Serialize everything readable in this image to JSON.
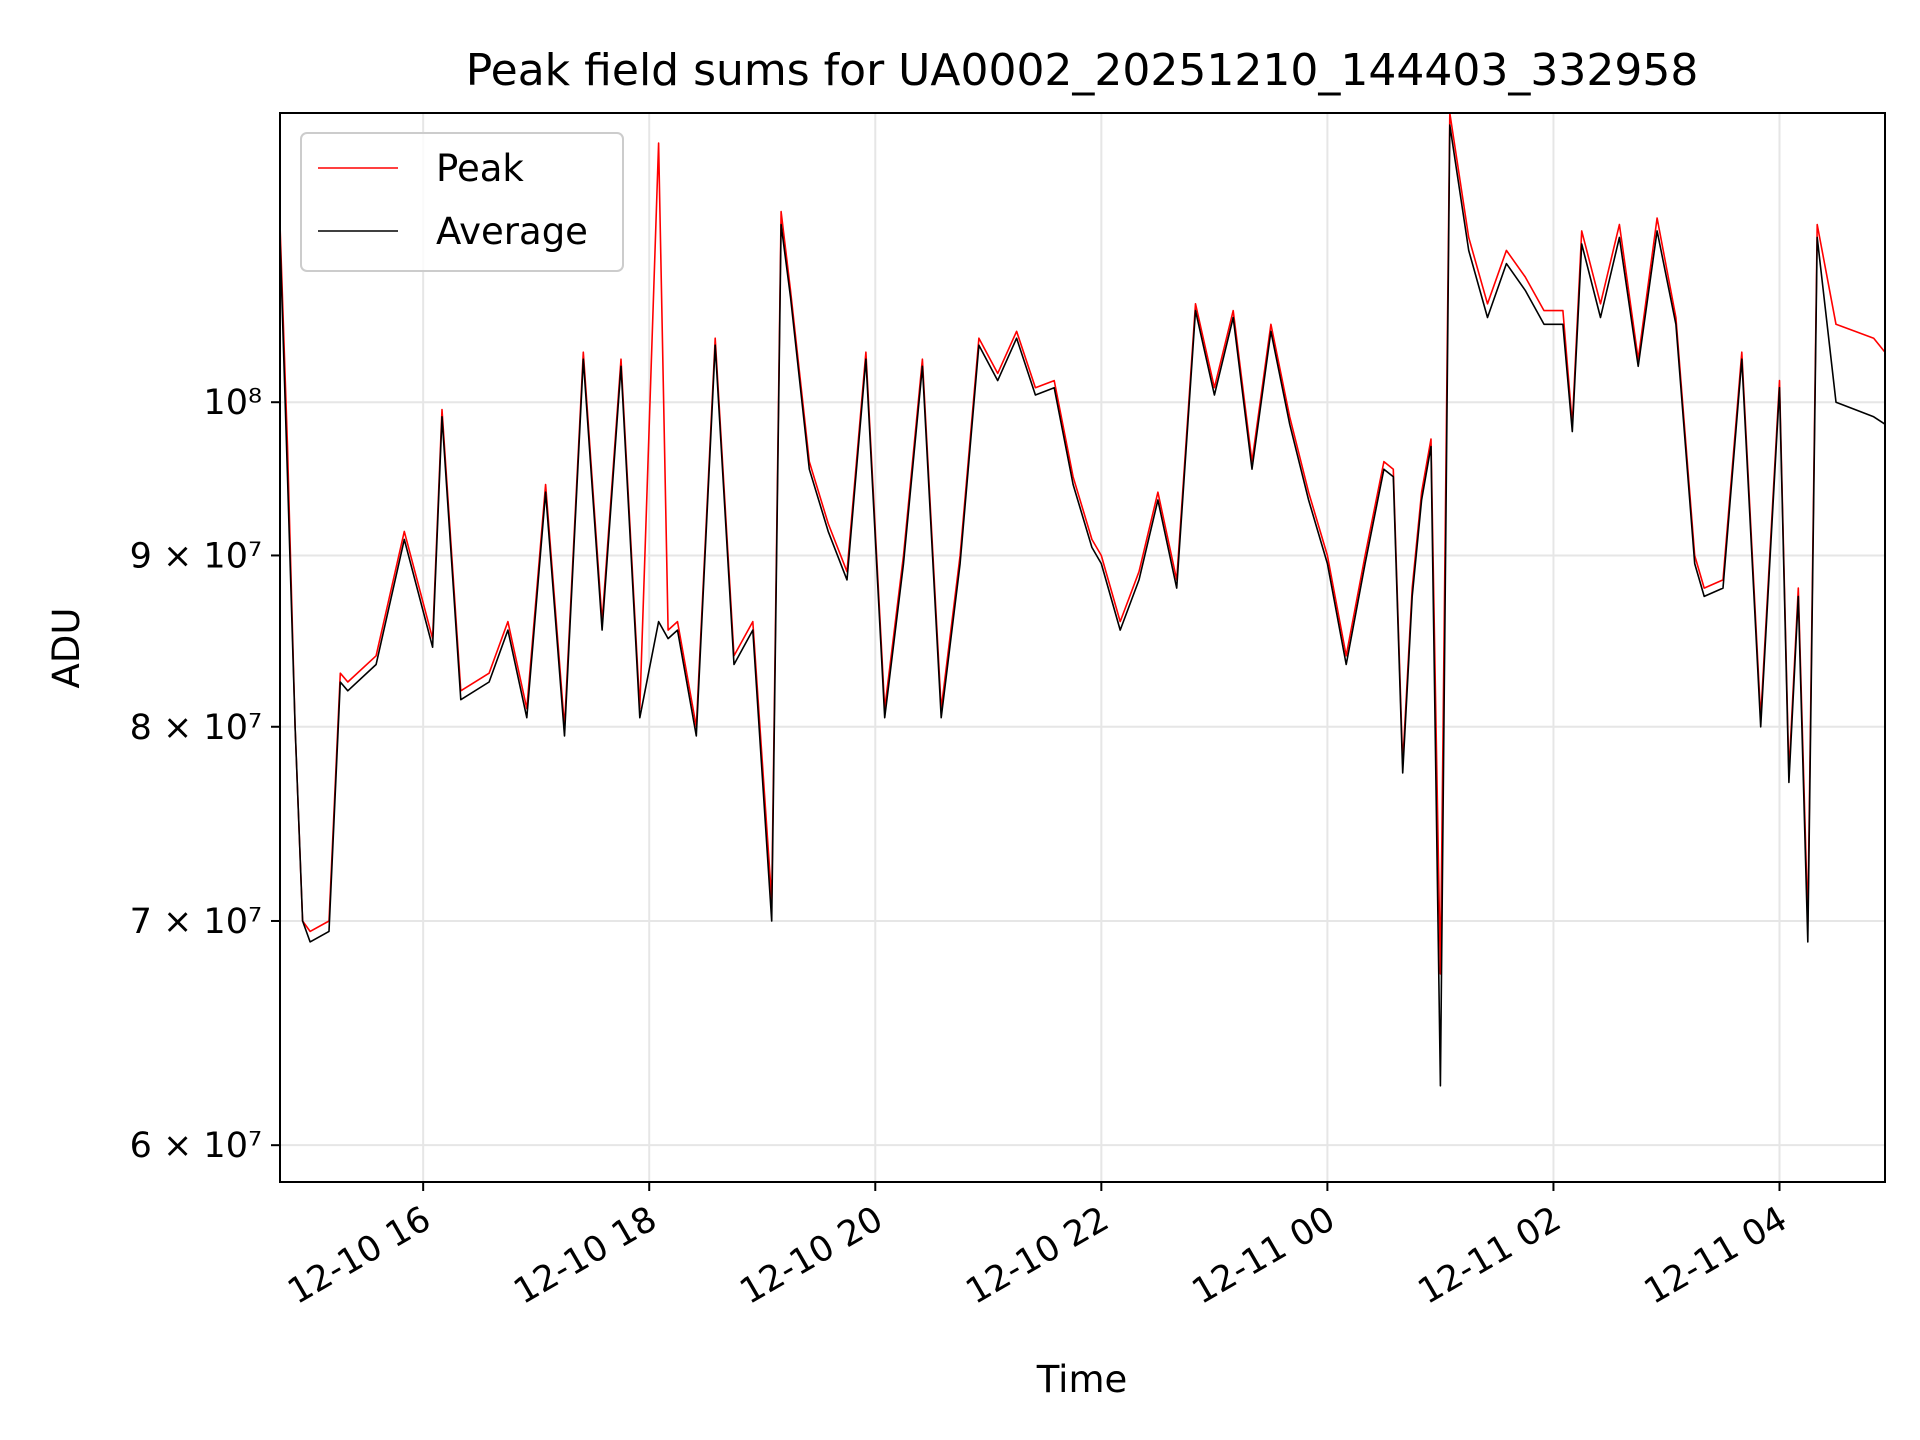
{
  "chart_data": {
    "type": "line",
    "title": "Peak field sums for UA0002_20251210_144403_332958",
    "xlabel": "Time",
    "ylabel": "ADU",
    "y_scale": "log",
    "grid": true,
    "legend_position": "top-left",
    "xlim": [
      "2025-12-10 14:44",
      "2025-12-11 04:56"
    ],
    "ylim": [
      58500000,
      122000000
    ],
    "x_ticks": [
      {
        "value": "2025-12-10 16:00",
        "label": "12-10 16"
      },
      {
        "value": "2025-12-10 18:00",
        "label": "12-10 18"
      },
      {
        "value": "2025-12-10 20:00",
        "label": "12-10 20"
      },
      {
        "value": "2025-12-10 22:00",
        "label": "12-10 22"
      },
      {
        "value": "2025-12-11 00:00",
        "label": "12-11 00"
      },
      {
        "value": "2025-12-11 02:00",
        "label": "12-11 02"
      },
      {
        "value": "2025-12-11 04:00",
        "label": "12-11 04"
      }
    ],
    "y_ticks": [
      {
        "value": 60000000,
        "label": "6 × 10⁷"
      },
      {
        "value": 70000000,
        "label": "7 × 10⁷"
      },
      {
        "value": 80000000,
        "label": "8 × 10⁷"
      },
      {
        "value": 90000000,
        "label": "9 × 10⁷"
      },
      {
        "value": 100000000,
        "label": "10⁸"
      }
    ],
    "x": [
      "2025-12-10 14:44",
      "2025-12-10 14:48",
      "2025-12-10 14:52",
      "2025-12-10 14:56",
      "2025-12-10 15:00",
      "2025-12-10 15:10",
      "2025-12-10 15:16",
      "2025-12-10 15:20",
      "2025-12-10 15:35",
      "2025-12-10 15:50",
      "2025-12-10 16:05",
      "2025-12-10 16:10",
      "2025-12-10 16:20",
      "2025-12-10 16:35",
      "2025-12-10 16:45",
      "2025-12-10 16:55",
      "2025-12-10 17:05",
      "2025-12-10 17:15",
      "2025-12-10 17:25",
      "2025-12-10 17:35",
      "2025-12-10 17:45",
      "2025-12-10 17:55",
      "2025-12-10 18:05",
      "2025-12-10 18:10",
      "2025-12-10 18:15",
      "2025-12-10 18:25",
      "2025-12-10 18:35",
      "2025-12-10 18:45",
      "2025-12-10 18:55",
      "2025-12-10 19:05",
      "2025-12-10 19:10",
      "2025-12-10 19:15",
      "2025-12-10 19:25",
      "2025-12-10 19:35",
      "2025-12-10 19:45",
      "2025-12-10 19:55",
      "2025-12-10 20:05",
      "2025-12-10 20:15",
      "2025-12-10 20:25",
      "2025-12-10 20:35",
      "2025-12-10 20:45",
      "2025-12-10 20:55",
      "2025-12-10 21:05",
      "2025-12-10 21:15",
      "2025-12-10 21:25",
      "2025-12-10 21:35",
      "2025-12-10 21:45",
      "2025-12-10 21:55",
      "2025-12-10 22:00",
      "2025-12-10 22:10",
      "2025-12-10 22:20",
      "2025-12-10 22:30",
      "2025-12-10 22:40",
      "2025-12-10 22:50",
      "2025-12-10 23:00",
      "2025-12-10 23:10",
      "2025-12-10 23:20",
      "2025-12-10 23:30",
      "2025-12-10 23:40",
      "2025-12-10 23:50",
      "2025-12-11 00:00",
      "2025-12-11 00:10",
      "2025-12-11 00:20",
      "2025-12-11 00:30",
      "2025-12-11 00:35",
      "2025-12-11 00:40",
      "2025-12-11 00:45",
      "2025-12-11 00:50",
      "2025-12-11 00:55",
      "2025-12-11 01:00",
      "2025-12-11 01:05",
      "2025-12-11 01:15",
      "2025-12-11 01:25",
      "2025-12-11 01:35",
      "2025-12-11 01:45",
      "2025-12-11 01:55",
      "2025-12-11 02:05",
      "2025-12-11 02:10",
      "2025-12-11 02:15",
      "2025-12-11 02:25",
      "2025-12-11 02:35",
      "2025-12-11 02:45",
      "2025-12-11 02:55",
      "2025-12-11 03:05",
      "2025-12-11 03:15",
      "2025-12-11 03:20",
      "2025-12-11 03:30",
      "2025-12-11 03:40",
      "2025-12-11 03:50",
      "2025-12-11 04:00",
      "2025-12-11 04:05",
      "2025-12-11 04:10",
      "2025-12-11 04:15",
      "2025-12-11 04:20",
      "2025-12-11 04:30",
      "2025-12-11 04:40",
      "2025-12-11 04:50",
      "2025-12-11 04:56"
    ],
    "series": [
      {
        "name": "Peak",
        "color": "#ff0000",
        "values": [
          113000000,
          97000000,
          80000000,
          70000000,
          69500000,
          70000000,
          83000000,
          82500000,
          84000000,
          91500000,
          85000000,
          99500000,
          82000000,
          83000000,
          86000000,
          81000000,
          94500000,
          80000000,
          103500000,
          86000000,
          103000000,
          81000000,
          119500000,
          85500000,
          86000000,
          80000000,
          104500000,
          84000000,
          86000000,
          71000000,
          114000000,
          108000000,
          96000000,
          92000000,
          89000000,
          103500000,
          81000000,
          90000000,
          103000000,
          81000000,
          90000000,
          104500000,
          102000000,
          105000000,
          101000000,
          101500000,
          95000000,
          91000000,
          90000000,
          86000000,
          89000000,
          94000000,
          88500000,
          107000000,
          101000000,
          106500000,
          96000000,
          105500000,
          99000000,
          94000000,
          90000000,
          84000000,
          90000000,
          96000000,
          95500000,
          78000000,
          88000000,
          94000000,
          97500000,
          67500000,
          123000000,
          112000000,
          107000000,
          111000000,
          109000000,
          106500000,
          106500000,
          98500000,
          112500000,
          107000000,
          113000000,
          103000000,
          113500000,
          106000000,
          90000000,
          88000000,
          88500000,
          103500000,
          80500000,
          101500000,
          77500000,
          88000000,
          70000000,
          113000000,
          105500000,
          105000000,
          104500000,
          103500000
        ]
      },
      {
        "name": "Average",
        "color": "#000000",
        "values": [
          112000000,
          95000000,
          80000000,
          70000000,
          69000000,
          69500000,
          82500000,
          82000000,
          83500000,
          91000000,
          84500000,
          99000000,
          81500000,
          82500000,
          85500000,
          80500000,
          94000000,
          79500000,
          103000000,
          85500000,
          102500000,
          80500000,
          86000000,
          85000000,
          85500000,
          79500000,
          104000000,
          83500000,
          85500000,
          70000000,
          113000000,
          107500000,
          95500000,
          91500000,
          88500000,
          103000000,
          80500000,
          89500000,
          102500000,
          80500000,
          89500000,
          104000000,
          101500000,
          104500000,
          100500000,
          101000000,
          94500000,
          90500000,
          89500000,
          85500000,
          88500000,
          93500000,
          88000000,
          106500000,
          100500000,
          106000000,
          95500000,
          105000000,
          98500000,
          93500000,
          89500000,
          83500000,
          89500000,
          95500000,
          95000000,
          77500000,
          87500000,
          93500000,
          97000000,
          62500000,
          121000000,
          111000000,
          106000000,
          110000000,
          108000000,
          105500000,
          105500000,
          98000000,
          111500000,
          106000000,
          112000000,
          102500000,
          112500000,
          105500000,
          89500000,
          87500000,
          88000000,
          103000000,
          80000000,
          101000000,
          77000000,
          87500000,
          69000000,
          112000000,
          100000000,
          99500000,
          99000000,
          98500000
        ]
      }
    ]
  }
}
